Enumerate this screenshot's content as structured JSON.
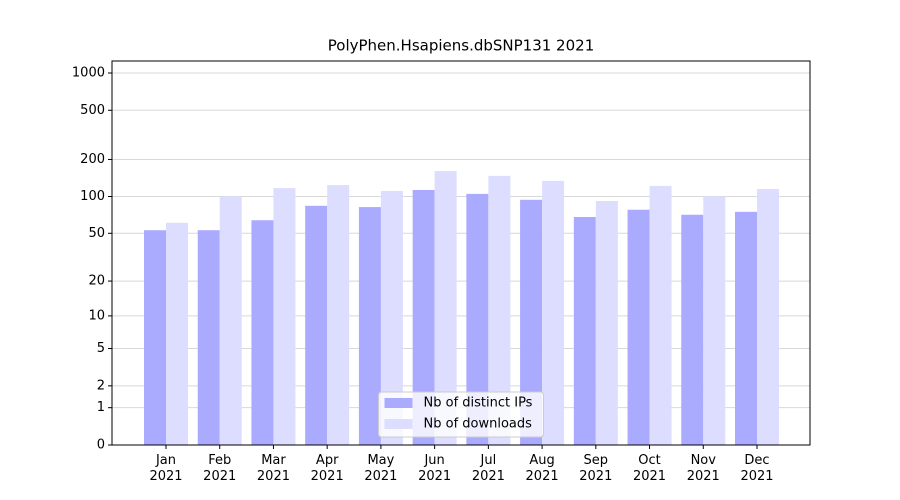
{
  "chart_data": {
    "type": "bar",
    "title": "PolyPhen.Hsapiens.dbSNP131 2021",
    "categories": [
      "Jan\n2021",
      "Feb\n2021",
      "Mar\n2021",
      "Apr\n2021",
      "May\n2021",
      "Jun\n2021",
      "Jul\n2021",
      "Aug\n2021",
      "Sep\n2021",
      "Oct\n2021",
      "Nov\n2021",
      "Dec\n2021"
    ],
    "series": [
      {
        "name": "Nb of distinct IPs",
        "color": "#aaaaff",
        "values": [
          53,
          53,
          64,
          84,
          82,
          113,
          105,
          94,
          68,
          78,
          71,
          75
        ]
      },
      {
        "name": "Nb of downloads",
        "color": "#ddddff",
        "values": [
          61,
          100,
          117,
          124,
          111,
          161,
          147,
          134,
          92,
          122,
          100,
          115
        ]
      }
    ],
    "y_scale": "symlog",
    "ylim": [
      0,
      1250
    ],
    "yticks": [
      0,
      1,
      2,
      5,
      10,
      20,
      50,
      100,
      200,
      500,
      1000
    ],
    "grid": true,
    "legend": "lower center"
  }
}
